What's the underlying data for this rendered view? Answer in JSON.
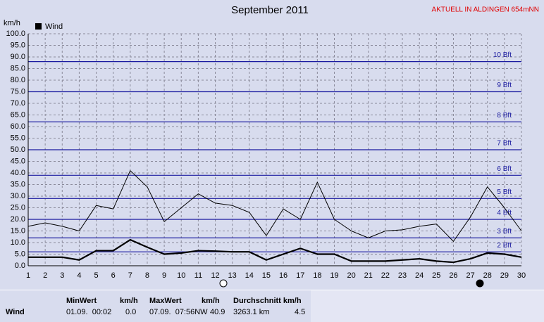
{
  "chart_data": {
    "type": "line",
    "title": "September 2011",
    "station": "AKTUELL IN ALDINGEN 654mNN",
    "y_label": "km/h",
    "x": [
      1,
      2,
      3,
      4,
      5,
      6,
      7,
      8,
      9,
      10,
      11,
      12,
      13,
      14,
      15,
      16,
      17,
      18,
      19,
      20,
      21,
      22,
      23,
      24,
      25,
      26,
      27,
      28,
      29,
      30
    ],
    "xlim": [
      1,
      30
    ],
    "xticks": [
      1,
      2,
      3,
      4,
      5,
      6,
      7,
      8,
      9,
      10,
      11,
      12,
      13,
      14,
      15,
      16,
      17,
      18,
      19,
      20,
      21,
      22,
      23,
      24,
      25,
      26,
      27,
      28,
      29,
      30
    ],
    "ylim": [
      0,
      100
    ],
    "yticks": [
      {
        "value": 0,
        "label": "0.0"
      },
      {
        "value": 5,
        "label": "5.0"
      },
      {
        "value": 10,
        "label": "10.0"
      },
      {
        "value": 15,
        "label": "15.0"
      },
      {
        "value": 20,
        "label": "20.0"
      },
      {
        "value": 25,
        "label": "25.0"
      },
      {
        "value": 30,
        "label": "30.0"
      },
      {
        "value": 35,
        "label": "35.0"
      },
      {
        "value": 40,
        "label": "40.0"
      },
      {
        "value": 45,
        "label": "45.0"
      },
      {
        "value": 50,
        "label": "50.0"
      },
      {
        "value": 55,
        "label": "55.0"
      },
      {
        "value": 60,
        "label": "60.0"
      },
      {
        "value": 65,
        "label": "65.0"
      },
      {
        "value": 70,
        "label": "70.0"
      },
      {
        "value": 75,
        "label": "75.0"
      },
      {
        "value": 80,
        "label": "80.0"
      },
      {
        "value": 85,
        "label": "85.0"
      },
      {
        "value": 90,
        "label": "90.0"
      },
      {
        "value": 95,
        "label": "95.0"
      },
      {
        "value": 100,
        "label": "100.0"
      }
    ],
    "grid": true,
    "bft_lines": [
      {
        "value": 6,
        "label": "2 Bft"
      },
      {
        "value": 12,
        "label": "3 Bft"
      },
      {
        "value": 20,
        "label": "4 Bft"
      },
      {
        "value": 29,
        "label": "5 Bft"
      },
      {
        "value": 39,
        "label": "6 Bft"
      },
      {
        "value": 50,
        "label": "7 Bft"
      },
      {
        "value": 62,
        "label": "8 Bft"
      },
      {
        "value": 75,
        "label": "9 Bft"
      },
      {
        "value": 88,
        "label": "10 Bft"
      }
    ],
    "series": [
      {
        "name": "Wind",
        "color": "#000000",
        "width": 2.2,
        "values": [
          3.7,
          3.7,
          3.7,
          2.5,
          6.5,
          6.5,
          11.2,
          8,
          5,
          5.5,
          6.5,
          6.3,
          6,
          6,
          2.5,
          5,
          7.5,
          5,
          5,
          2,
          2,
          2,
          2.5,
          3,
          2,
          1.5,
          3,
          5.5,
          5,
          3.7
        ]
      },
      {
        "color": "#000000",
        "width": 1,
        "values": [
          17,
          18.5,
          17,
          15,
          26,
          24.5,
          41,
          34,
          19,
          25,
          31,
          27,
          26,
          23,
          13,
          24.5,
          20,
          36,
          20,
          15,
          12,
          15,
          15.5,
          17,
          18,
          10.5,
          21,
          34,
          25,
          15
        ]
      }
    ]
  },
  "table": {
    "header": [
      "MinWert",
      "km/h",
      "MaxWert",
      "km/h",
      "Durchschnitt km/h"
    ],
    "rows": [
      [
        "Wind",
        "01.09.  00:02",
        "0.0",
        "07.09.  07:56NW",
        "40.9",
        "3263.1 km",
        "4.5"
      ]
    ]
  }
}
